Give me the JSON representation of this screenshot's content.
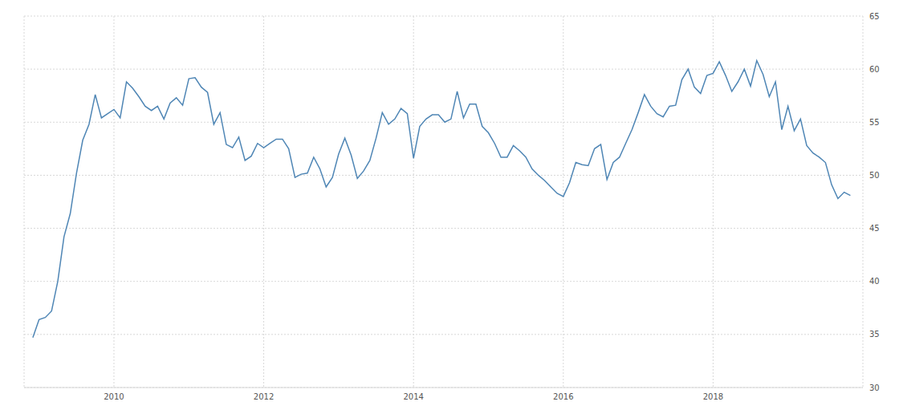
{
  "chart_data": {
    "type": "line",
    "color": "#4f86b5",
    "grid": true,
    "xlim": [
      2008.8,
      2020.0
    ],
    "xticks": [
      2010,
      2012,
      2014,
      2016,
      2018
    ],
    "ylim": [
      30,
      65
    ],
    "yticks": [
      30,
      35,
      40,
      45,
      50,
      55,
      60,
      65
    ],
    "x": [
      2008.917,
      2009.0,
      2009.083,
      2009.167,
      2009.25,
      2009.333,
      2009.417,
      2009.5,
      2009.583,
      2009.667,
      2009.75,
      2009.833,
      2009.917,
      2010.0,
      2010.083,
      2010.167,
      2010.25,
      2010.333,
      2010.417,
      2010.5,
      2010.583,
      2010.667,
      2010.75,
      2010.833,
      2010.917,
      2011.0,
      2011.083,
      2011.167,
      2011.25,
      2011.333,
      2011.417,
      2011.5,
      2011.583,
      2011.667,
      2011.75,
      2011.833,
      2011.917,
      2012.0,
      2012.083,
      2012.167,
      2012.25,
      2012.333,
      2012.417,
      2012.5,
      2012.583,
      2012.667,
      2012.75,
      2012.833,
      2012.917,
      2013.0,
      2013.083,
      2013.167,
      2013.25,
      2013.333,
      2013.417,
      2013.5,
      2013.583,
      2013.667,
      2013.75,
      2013.833,
      2013.917,
      2014.0,
      2014.083,
      2014.167,
      2014.25,
      2014.333,
      2014.417,
      2014.5,
      2014.583,
      2014.667,
      2014.75,
      2014.833,
      2014.917,
      2015.0,
      2015.083,
      2015.167,
      2015.25,
      2015.333,
      2015.417,
      2015.5,
      2015.583,
      2015.667,
      2015.75,
      2015.833,
      2015.917,
      2016.0,
      2016.083,
      2016.167,
      2016.25,
      2016.333,
      2016.417,
      2016.5,
      2016.583,
      2016.667,
      2016.75,
      2016.833,
      2016.917,
      2017.0,
      2017.083,
      2017.167,
      2017.25,
      2017.333,
      2017.417,
      2017.5,
      2017.583,
      2017.667,
      2017.75,
      2017.833,
      2017.917,
      2018.0,
      2018.083,
      2018.167,
      2018.25,
      2018.333,
      2018.417,
      2018.5,
      2018.583,
      2018.667,
      2018.75,
      2018.833,
      2018.917,
      2019.0,
      2019.083,
      2019.167,
      2019.25,
      2019.333,
      2019.417,
      2019.5,
      2019.583,
      2019.667,
      2019.75,
      2019.833
    ],
    "values": [
      34.7,
      36.4,
      36.6,
      37.2,
      40.0,
      44.2,
      46.4,
      50.2,
      53.3,
      54.8,
      57.6,
      55.4,
      55.8,
      56.2,
      55.4,
      58.8,
      58.2,
      57.4,
      56.5,
      56.1,
      56.5,
      55.3,
      56.8,
      57.3,
      56.6,
      59.1,
      59.2,
      58.3,
      57.8,
      54.8,
      55.9,
      52.9,
      52.6,
      53.6,
      51.4,
      51.8,
      53.0,
      52.6,
      53.0,
      53.4,
      53.4,
      52.5,
      49.8,
      50.1,
      50.2,
      51.7,
      50.6,
      48.9,
      49.8,
      52.0,
      53.5,
      51.9,
      49.7,
      50.4,
      51.4,
      53.5,
      55.9,
      54.8,
      55.3,
      56.3,
      55.8,
      51.6,
      54.6,
      55.3,
      55.7,
      55.7,
      55.0,
      55.3,
      57.9,
      55.4,
      56.7,
      56.7,
      54.6,
      54.0,
      53.0,
      51.7,
      51.7,
      52.8,
      52.3,
      51.7,
      50.6,
      50.0,
      49.5,
      48.9,
      48.3,
      48.0,
      49.3,
      51.2,
      51.0,
      50.9,
      52.5,
      52.9,
      49.6,
      51.2,
      51.7,
      53.0,
      54.3,
      55.9,
      57.6,
      56.5,
      55.8,
      55.5,
      56.5,
      56.6,
      59.0,
      60.0,
      58.3,
      57.7,
      59.4,
      59.6,
      60.7,
      59.4,
      57.9,
      58.8,
      60.0,
      58.4,
      60.8,
      59.5,
      57.4,
      58.8,
      54.3,
      56.5,
      54.2,
      55.3,
      52.8,
      52.1,
      51.7,
      51.2,
      49.1,
      47.8,
      48.4,
      48.1
    ]
  }
}
